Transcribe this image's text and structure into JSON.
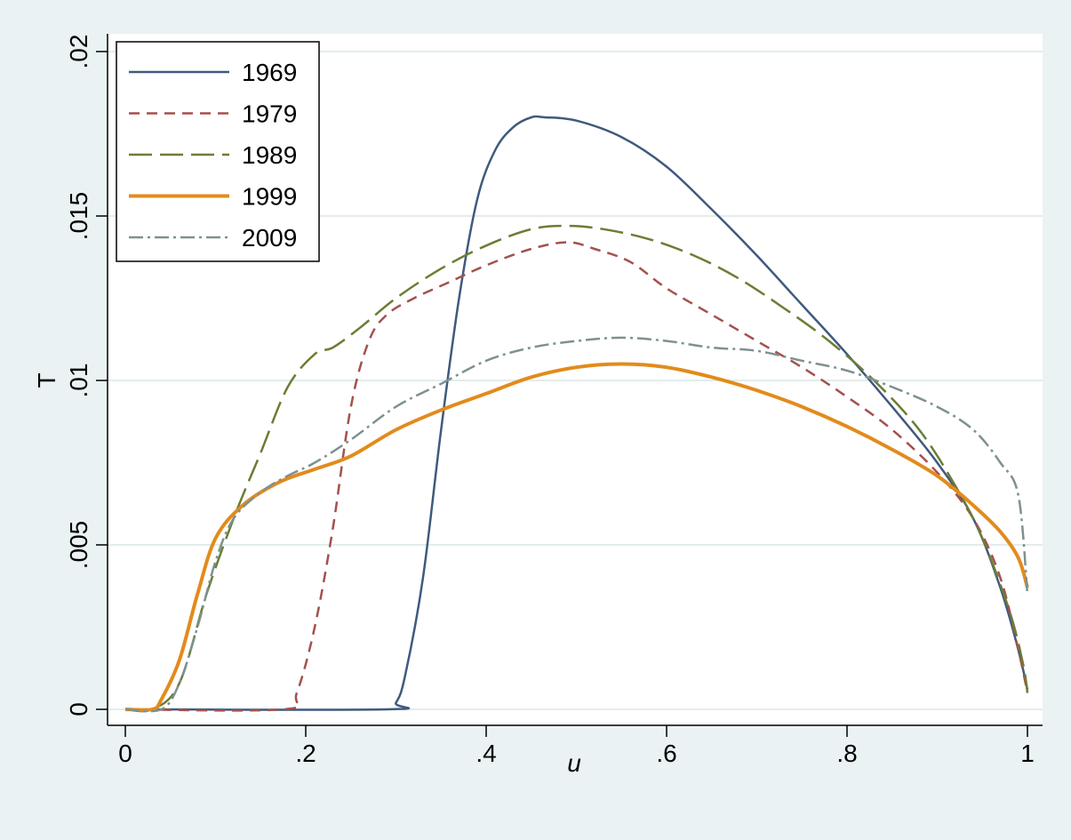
{
  "chart_data": {
    "type": "line",
    "title": "",
    "xlabel": "u",
    "ylabel": "T",
    "xlim": [
      0,
      1
    ],
    "ylim": [
      0,
      0.02
    ],
    "xticks": [
      0,
      0.2,
      0.4,
      0.6,
      0.8,
      1
    ],
    "xtick_labels": [
      "0",
      ".2",
      ".4",
      ".6",
      ".8",
      "1"
    ],
    "yticks": [
      0,
      0.005,
      0.01,
      0.015,
      0.02
    ],
    "ytick_labels": [
      "0",
      ".005",
      ".01",
      ".015",
      ".02"
    ],
    "grid": true,
    "legend_position": "top-left",
    "series": [
      {
        "name": "1969",
        "color": "#3f5a7e",
        "dash": "solid",
        "points": [
          [
            0,
            0
          ],
          [
            0.29,
            0
          ],
          [
            0.3,
            0.0002
          ],
          [
            0.31,
            0.001
          ],
          [
            0.33,
            0.004
          ],
          [
            0.35,
            0.0085
          ],
          [
            0.37,
            0.0125
          ],
          [
            0.39,
            0.0155
          ],
          [
            0.41,
            0.017
          ],
          [
            0.43,
            0.0177
          ],
          [
            0.45,
            0.018
          ],
          [
            0.465,
            0.018
          ],
          [
            0.5,
            0.0179
          ],
          [
            0.55,
            0.0174
          ],
          [
            0.6,
            0.0165
          ],
          [
            0.65,
            0.0152
          ],
          [
            0.7,
            0.0138
          ],
          [
            0.75,
            0.0123
          ],
          [
            0.8,
            0.0108
          ],
          [
            0.85,
            0.0092
          ],
          [
            0.9,
            0.0075
          ],
          [
            0.94,
            0.0058
          ],
          [
            0.97,
            0.0037
          ],
          [
            0.99,
            0.0018
          ],
          [
            1.0,
            0.0006
          ]
        ]
      },
      {
        "name": "1979",
        "color": "#a3514d",
        "dash": "short-dash",
        "points": [
          [
            0,
            0
          ],
          [
            0.175,
            0
          ],
          [
            0.19,
            0.0005
          ],
          [
            0.21,
            0.0025
          ],
          [
            0.23,
            0.0055
          ],
          [
            0.25,
            0.0092
          ],
          [
            0.27,
            0.0112
          ],
          [
            0.29,
            0.012
          ],
          [
            0.32,
            0.0125
          ],
          [
            0.36,
            0.013
          ],
          [
            0.4,
            0.0135
          ],
          [
            0.45,
            0.014
          ],
          [
            0.49,
            0.0142
          ],
          [
            0.52,
            0.014
          ],
          [
            0.56,
            0.0136
          ],
          [
            0.6,
            0.0128
          ],
          [
            0.65,
            0.012
          ],
          [
            0.7,
            0.0112
          ],
          [
            0.75,
            0.0104
          ],
          [
            0.8,
            0.0095
          ],
          [
            0.85,
            0.0085
          ],
          [
            0.9,
            0.0072
          ],
          [
            0.94,
            0.0058
          ],
          [
            0.97,
            0.004
          ],
          [
            0.99,
            0.0018
          ],
          [
            1.0,
            0.0005
          ]
        ]
      },
      {
        "name": "1989",
        "color": "#6b7d35",
        "dash": "long-dash",
        "points": [
          [
            0,
            0
          ],
          [
            0.03,
            0
          ],
          [
            0.06,
            0.0008
          ],
          [
            0.09,
            0.0035
          ],
          [
            0.12,
            0.0058
          ],
          [
            0.15,
            0.0078
          ],
          [
            0.18,
            0.0098
          ],
          [
            0.21,
            0.0108
          ],
          [
            0.23,
            0.011
          ],
          [
            0.26,
            0.0116
          ],
          [
            0.3,
            0.0125
          ],
          [
            0.35,
            0.0134
          ],
          [
            0.4,
            0.0141
          ],
          [
            0.45,
            0.0146
          ],
          [
            0.49,
            0.0147
          ],
          [
            0.53,
            0.0146
          ],
          [
            0.58,
            0.0143
          ],
          [
            0.63,
            0.0138
          ],
          [
            0.68,
            0.0131
          ],
          [
            0.73,
            0.0122
          ],
          [
            0.78,
            0.0112
          ],
          [
            0.83,
            0.01
          ],
          [
            0.88,
            0.0085
          ],
          [
            0.92,
            0.0068
          ],
          [
            0.95,
            0.0052
          ],
          [
            0.98,
            0.003
          ],
          [
            0.995,
            0.0014
          ],
          [
            1.0,
            0.0005
          ]
        ]
      },
      {
        "name": "1999",
        "color": "#e28b1c",
        "dash": "solid",
        "points": [
          [
            0,
            0
          ],
          [
            0.03,
            0
          ],
          [
            0.04,
            0.0003
          ],
          [
            0.06,
            0.0015
          ],
          [
            0.08,
            0.0035
          ],
          [
            0.1,
            0.0052
          ],
          [
            0.13,
            0.0062
          ],
          [
            0.17,
            0.0069
          ],
          [
            0.21,
            0.0073
          ],
          [
            0.25,
            0.0077
          ],
          [
            0.3,
            0.0085
          ],
          [
            0.35,
            0.0091
          ],
          [
            0.4,
            0.0096
          ],
          [
            0.45,
            0.0101
          ],
          [
            0.5,
            0.0104
          ],
          [
            0.55,
            0.0105
          ],
          [
            0.6,
            0.0104
          ],
          [
            0.65,
            0.0101
          ],
          [
            0.7,
            0.0097
          ],
          [
            0.75,
            0.0092
          ],
          [
            0.8,
            0.0086
          ],
          [
            0.85,
            0.0079
          ],
          [
            0.9,
            0.0071
          ],
          [
            0.94,
            0.0062
          ],
          [
            0.97,
            0.0054
          ],
          [
            0.99,
            0.0046
          ],
          [
            1.0,
            0.0037
          ]
        ]
      },
      {
        "name": "2009",
        "color": "#7d9190",
        "dash": "dash-dot",
        "points": [
          [
            0,
            0
          ],
          [
            0.04,
            0
          ],
          [
            0.06,
            0.0008
          ],
          [
            0.08,
            0.0025
          ],
          [
            0.1,
            0.0045
          ],
          [
            0.12,
            0.0058
          ],
          [
            0.15,
            0.0066
          ],
          [
            0.18,
            0.0071
          ],
          [
            0.21,
            0.0075
          ],
          [
            0.25,
            0.0082
          ],
          [
            0.3,
            0.0092
          ],
          [
            0.35,
            0.0099
          ],
          [
            0.4,
            0.0106
          ],
          [
            0.45,
            0.011
          ],
          [
            0.5,
            0.0112
          ],
          [
            0.55,
            0.0113
          ],
          [
            0.6,
            0.0112
          ],
          [
            0.65,
            0.011
          ],
          [
            0.7,
            0.0109
          ],
          [
            0.75,
            0.0106
          ],
          [
            0.8,
            0.0103
          ],
          [
            0.85,
            0.0098
          ],
          [
            0.9,
            0.0092
          ],
          [
            0.94,
            0.0085
          ],
          [
            0.97,
            0.0075
          ],
          [
            0.99,
            0.0065
          ],
          [
            1.0,
            0.0035
          ]
        ]
      }
    ]
  }
}
